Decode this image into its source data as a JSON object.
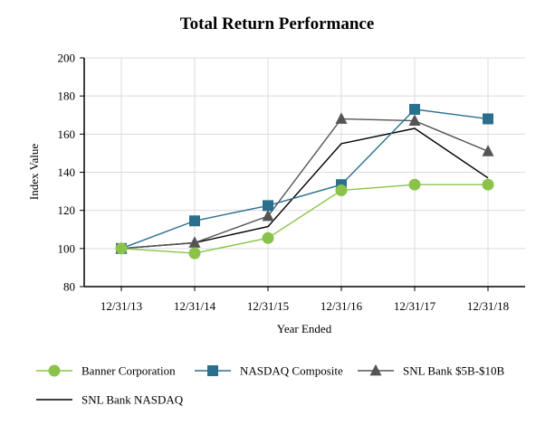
{
  "chart_data": {
    "type": "line",
    "title": "Total Return Performance",
    "xlabel": "Year Ended",
    "ylabel": "Index Value",
    "categories": [
      "12/31/13",
      "12/31/14",
      "12/31/15",
      "12/31/16",
      "12/31/17",
      "12/31/18"
    ],
    "ylim": [
      80,
      200
    ],
    "yticks": [
      80,
      100,
      120,
      140,
      160,
      180,
      200
    ],
    "grid": true,
    "legend_position": "bottom",
    "series": [
      {
        "name": "Banner Corporation",
        "values": [
          100,
          97.5,
          105.5,
          130.5,
          133.5,
          133.5
        ],
        "color": "#8bc34a",
        "marker": "circle"
      },
      {
        "name": "NASDAQ Composite",
        "values": [
          100,
          114.5,
          122.5,
          133.5,
          173,
          168
        ],
        "color": "#2b6f8e",
        "marker": "square"
      },
      {
        "name": "SNL Bank $5B-$10B",
        "values": [
          100,
          103,
          117,
          168,
          167,
          151
        ],
        "color": "#555555",
        "marker": "triangle"
      },
      {
        "name": "SNL Bank NASDAQ",
        "values": [
          100,
          103,
          111.5,
          155,
          163,
          137
        ],
        "color": "#000000",
        "marker": "none"
      }
    ]
  }
}
